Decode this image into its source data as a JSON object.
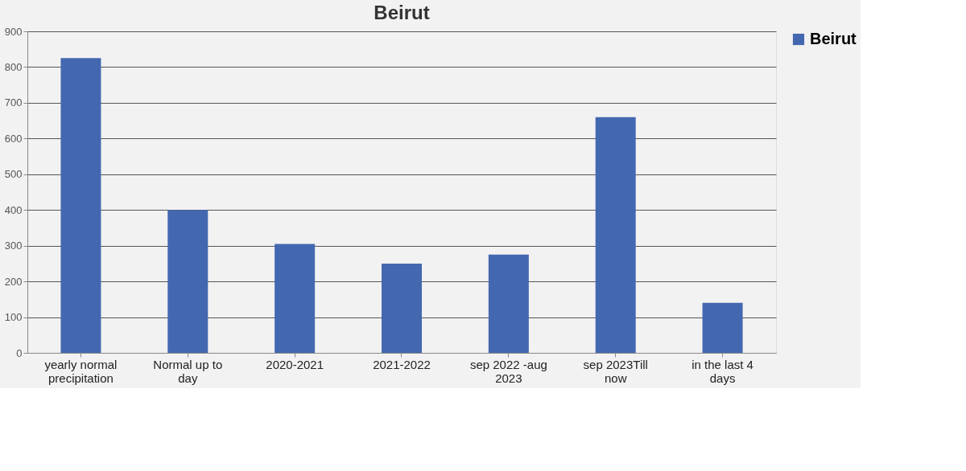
{
  "chart_data": {
    "type": "bar",
    "title": "Beirut",
    "categories": [
      "yearly normal\nprecipitation",
      "Normal up to\nday",
      "2020-2021",
      "2021-2022",
      "sep 2022 -aug\n2023",
      "sep 2023Till\nnow",
      "in the last 4\ndays"
    ],
    "series": [
      {
        "name": "Beirut",
        "color": "#4468b0",
        "values": [
          825,
          400,
          305,
          250,
          275,
          660,
          140
        ]
      }
    ],
    "ylim": [
      0,
      900
    ],
    "yticks": [
      0,
      100,
      200,
      300,
      400,
      500,
      600,
      700,
      800,
      900
    ],
    "grid": "y",
    "legend": "right"
  }
}
